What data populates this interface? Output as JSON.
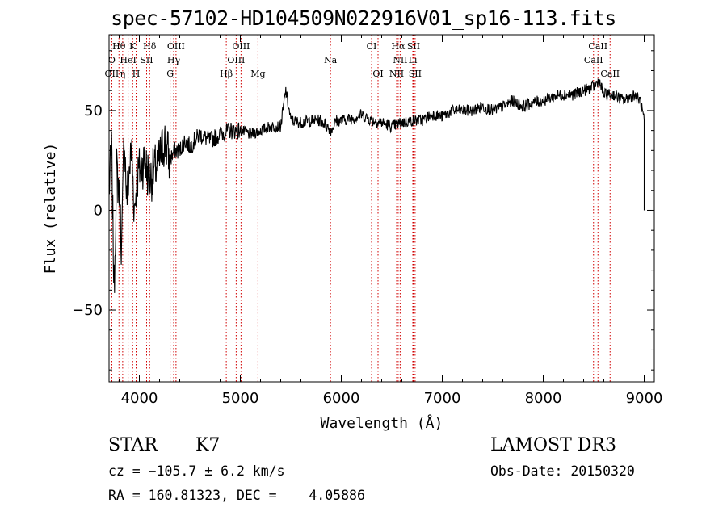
{
  "title": "spec-57102-HD104509N022916V01_sp16-113.fits",
  "chart_data": {
    "type": "line",
    "xlabel": "Wavelength (Å)",
    "ylabel": "Flux (relative)",
    "xlim": [
      3700,
      9100
    ],
    "ylim": [
      -86,
      88
    ],
    "xticks": [
      4000,
      5000,
      6000,
      7000,
      8000,
      9000
    ],
    "yticks": [
      -50,
      0,
      50
    ],
    "grid": false,
    "series": [
      {
        "name": "flux",
        "x": [
          3700,
          3725,
          3750,
          3775,
          3800,
          3825,
          3850,
          3875,
          3900,
          3925,
          3950,
          3975,
          4000,
          4050,
          4100,
          4150,
          4200,
          4250,
          4300,
          4350,
          4400,
          4450,
          4500,
          4600,
          4700,
          4800,
          4900,
          5000,
          5100,
          5200,
          5300,
          5400,
          5450,
          5500,
          5600,
          5700,
          5800,
          5900,
          5950,
          6000,
          6100,
          6200,
          6300,
          6400,
          6500,
          6600,
          6700,
          6800,
          6900,
          7000,
          7100,
          7200,
          7300,
          7400,
          7500,
          7600,
          7700,
          7800,
          7900,
          8000,
          8100,
          8200,
          8300,
          8400,
          8500,
          8550,
          8600,
          8700,
          8800,
          8900,
          8960,
          9000
        ],
        "values": [
          10,
          30,
          -40,
          20,
          10,
          -20,
          40,
          5,
          20,
          30,
          0,
          15,
          20,
          25,
          15,
          20,
          25,
          35,
          25,
          30,
          30,
          35,
          32,
          38,
          35,
          38,
          40,
          40,
          38,
          40,
          42,
          42,
          60,
          45,
          44,
          45,
          45,
          40,
          45,
          45,
          46,
          48,
          45,
          44,
          42,
          44,
          45,
          45,
          48,
          47,
          50,
          50,
          50,
          52,
          50,
          52,
          55,
          52,
          54,
          55,
          57,
          58,
          58,
          60,
          62,
          65,
          58,
          58,
          55,
          58,
          55,
          45
        ]
      }
    ],
    "lines": [
      {
        "label": "Hθ",
        "wave": 3798,
        "row": 1
      },
      {
        "label": "K",
        "wave": 3934,
        "row": 1
      },
      {
        "label": "Hδ",
        "wave": 4102,
        "row": 1
      },
      {
        "label": "OIII",
        "wave": 4363,
        "row": 1
      },
      {
        "label": "OIII",
        "wave": 5007,
        "row": 1
      },
      {
        "label": "CI",
        "wave": 6300,
        "row": 1
      },
      {
        "label": "Hα",
        "wave": 6563,
        "row": 1
      },
      {
        "label": "SII",
        "wave": 6716,
        "row": 1
      },
      {
        "label": "CaII",
        "wave": 8542,
        "row": 1
      },
      {
        "label": "O",
        "wave": 3727,
        "row": 2
      },
      {
        "label": "HeI",
        "wave": 3889,
        "row": 2
      },
      {
        "label": "SII",
        "wave": 4072,
        "row": 2
      },
      {
        "label": "Hγ",
        "wave": 4340,
        "row": 2
      },
      {
        "label": "OIII",
        "wave": 4959,
        "row": 2
      },
      {
        "label": "Na",
        "wave": 5893,
        "row": 2
      },
      {
        "label": "NII",
        "wave": 6583,
        "row": 2
      },
      {
        "label": "Li",
        "wave": 6708,
        "row": 2
      },
      {
        "label": "CaII",
        "wave": 8498,
        "row": 2
      },
      {
        "label": "OII",
        "wave": 3727,
        "row": 3
      },
      {
        "label": "η",
        "wave": 3835,
        "row": 3
      },
      {
        "label": "H",
        "wave": 3968,
        "row": 3
      },
      {
        "label": "G",
        "wave": 4305,
        "row": 3
      },
      {
        "label": "Hβ",
        "wave": 4861,
        "row": 3
      },
      {
        "label": "Mg",
        "wave": 5175,
        "row": 3
      },
      {
        "label": "OI",
        "wave": 6364,
        "row": 3
      },
      {
        "label": "NII",
        "wave": 6548,
        "row": 3
      },
      {
        "label": "SII",
        "wave": 6731,
        "row": 3
      },
      {
        "label": "CaII",
        "wave": 8662,
        "row": 3
      }
    ]
  },
  "info": {
    "class": "STAR",
    "subclass": "K7",
    "survey": "LAMOST DR3",
    "cz": "cz = −105.7 ± 6.2 km/s",
    "obsdate": "Obs-Date: 20150320",
    "radec": "RA = 160.81323, DEC =    4.05886"
  }
}
